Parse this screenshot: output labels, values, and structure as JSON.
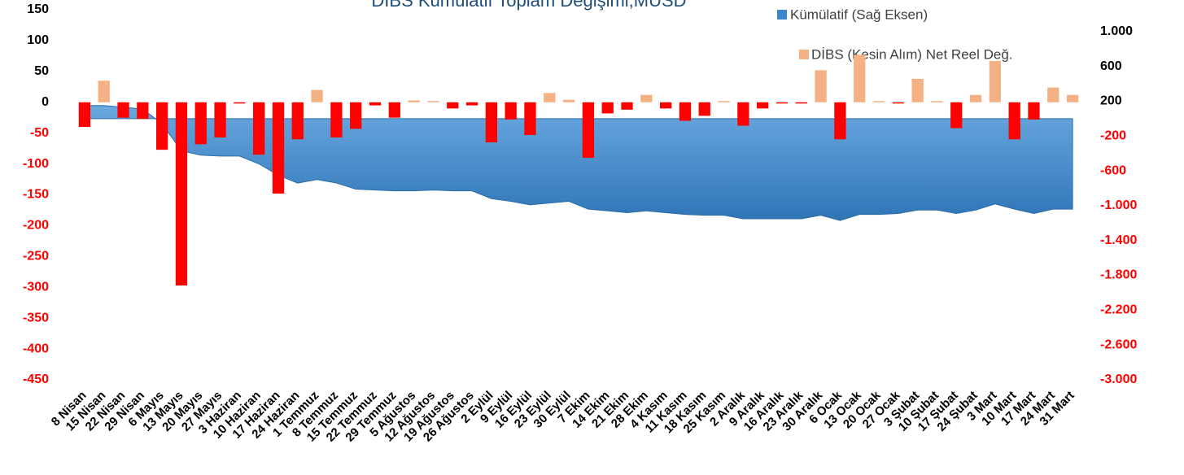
{
  "chart_data": {
    "type": "bar_area_combo",
    "title": "DİBS Kümülatif Toplam Değişimi,MUSD",
    "categories": [
      "8 Nisan",
      "15 Nisan",
      "22 Nisan",
      "29 Nisan",
      "6 Mayıs",
      "13 Mayıs",
      "20 Mayıs",
      "27 Mayıs",
      "3 Haziran",
      "10 Haziran",
      "17 Haziran",
      "24 Haziran",
      "1 Temmuz",
      "8 Temmuz",
      "15 Temmuz",
      "22 Temmuz",
      "29 Temmuz",
      "5 Ağustos",
      "12 Ağustos",
      "19 Ağustos",
      "26 Ağustos",
      "2 Eylül",
      "9 Eylül",
      "16 Eylül",
      "23 Eylül",
      "30 Eylül",
      "7 Ekim",
      "14 Ekim",
      "21 Ekim",
      "28 Ekim",
      "4 Kasım",
      "11 Kasım",
      "18 Kasım",
      "25 Kasım",
      "2 Aralık",
      "9 Aralık",
      "16 Aralık",
      "23 Aralık",
      "30 Aralık",
      "6 Ocak",
      "13 Ocak",
      "20 Ocak",
      "27 Ocak",
      "3 Şubat",
      "10 Şubat",
      "17 Şubat",
      "24 Şubat",
      "3 Mart",
      "10 Mart",
      "17 Mart",
      "24 Mart",
      "31 Mart"
    ],
    "series": [
      {
        "name": "Kümülatif (Sağ Eksen)",
        "kind": "area",
        "axis": "y2",
        "color": "#3a85cc",
        "values": [
          150,
          150,
          130,
          110,
          -60,
          -370,
          -420,
          -430,
          -430,
          -520,
          -650,
          -740,
          -700,
          -740,
          -810,
          -820,
          -830,
          -830,
          -820,
          -830,
          -830,
          -920,
          -950,
          -990,
          -970,
          -950,
          -1040,
          -1060,
          -1080,
          -1060,
          -1080,
          -1100,
          -1110,
          -1110,
          -1150,
          -1150,
          -1150,
          -1150,
          -1110,
          -1170,
          -1100,
          -1100,
          -1090,
          -1050,
          -1050,
          -1090,
          -1050,
          -980,
          -1040,
          -1090,
          -1040,
          -1040
        ]
      },
      {
        "name": "DİBS (Kesin Alım) Net Reel Değ.",
        "kind": "bar",
        "color": "#f4b183",
        "negative_color": "#ff0000",
        "values": [
          -40,
          35,
          -25,
          -27,
          -77,
          -297,
          -68,
          -57,
          -2,
          -85,
          -148,
          -60,
          20,
          -57,
          -43,
          -5,
          -25,
          3,
          2,
          -10,
          -5,
          -65,
          -28,
          -53,
          15,
          4,
          -90,
          -18,
          -12,
          12,
          -10,
          -30,
          -22,
          2,
          -38,
          -10,
          -2,
          -2,
          52,
          -60,
          77,
          2,
          -2,
          38,
          2,
          -42,
          12,
          67,
          -60,
          -28,
          24,
          12
        ]
      }
    ],
    "ylim": [
      -450,
      150
    ],
    "yticks": [
      150,
      100,
      50,
      0,
      -50,
      -100,
      -150,
      -200,
      -250,
      -300,
      -350,
      -400,
      -450
    ],
    "y2lim": [
      -3000,
      1250
    ],
    "y2ticks": [
      {
        "value": 1000,
        "label": "1.000"
      },
      600,
      200,
      -200,
      -600,
      {
        "value": -1000,
        "label": "-1.000"
      },
      {
        "value": -1400,
        "label": "-1.400"
      },
      {
        "value": -1800,
        "label": "-1.800"
      },
      {
        "value": -2200,
        "label": "-2.200"
      },
      {
        "value": -2600,
        "label": "-2.600"
      },
      {
        "value": -3000,
        "label": "-3.000"
      }
    ],
    "negative_tick_color": "#ff0000"
  }
}
